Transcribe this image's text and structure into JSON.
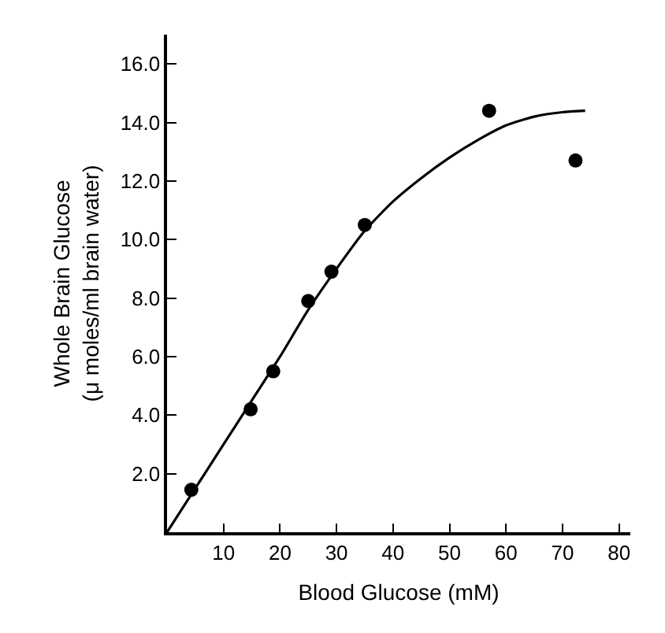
{
  "chart_data": {
    "type": "scatter",
    "xlabel": "Blood Glucose (mM)",
    "ylabel": "Whole Brain Glucose\n(μ moles/ml brain water)",
    "xlim": [
      0,
      82
    ],
    "ylim": [
      0,
      17
    ],
    "xticks": [
      10,
      20,
      30,
      40,
      50,
      60,
      70,
      80
    ],
    "yticks": [
      {
        "value": 2,
        "label": "2.0"
      },
      {
        "value": 4,
        "label": "4.0"
      },
      {
        "value": 6,
        "label": "6.0"
      },
      {
        "value": 8,
        "label": "8.0"
      },
      {
        "value": 10,
        "label": "10.0"
      },
      {
        "value": 12,
        "label": "12.0"
      },
      {
        "value": 14,
        "label": "14.0"
      },
      {
        "value": 16,
        "label": "16.0"
      }
    ],
    "grid": false,
    "marker": "circle",
    "series": [
      {
        "type": "scatter",
        "color": "#000000",
        "x": [
          4.3,
          14.8,
          18.8,
          25.0,
          29.1,
          35.0,
          57.0,
          72.3
        ],
        "values": [
          1.45,
          4.2,
          5.5,
          7.9,
          8.9,
          10.5,
          14.4,
          12.7
        ]
      },
      {
        "type": "line",
        "color": "#000000",
        "marker": "none",
        "line_style": "solid",
        "x": [
          0,
          5,
          10,
          15,
          20,
          25,
          30,
          35,
          40,
          45,
          50,
          55,
          60,
          65,
          70,
          74
        ],
        "values": [
          0,
          1.5,
          3.0,
          4.5,
          6.0,
          7.6,
          9.0,
          10.3,
          11.3,
          12.1,
          12.8,
          13.4,
          13.9,
          14.2,
          14.35,
          14.4
        ]
      }
    ]
  }
}
